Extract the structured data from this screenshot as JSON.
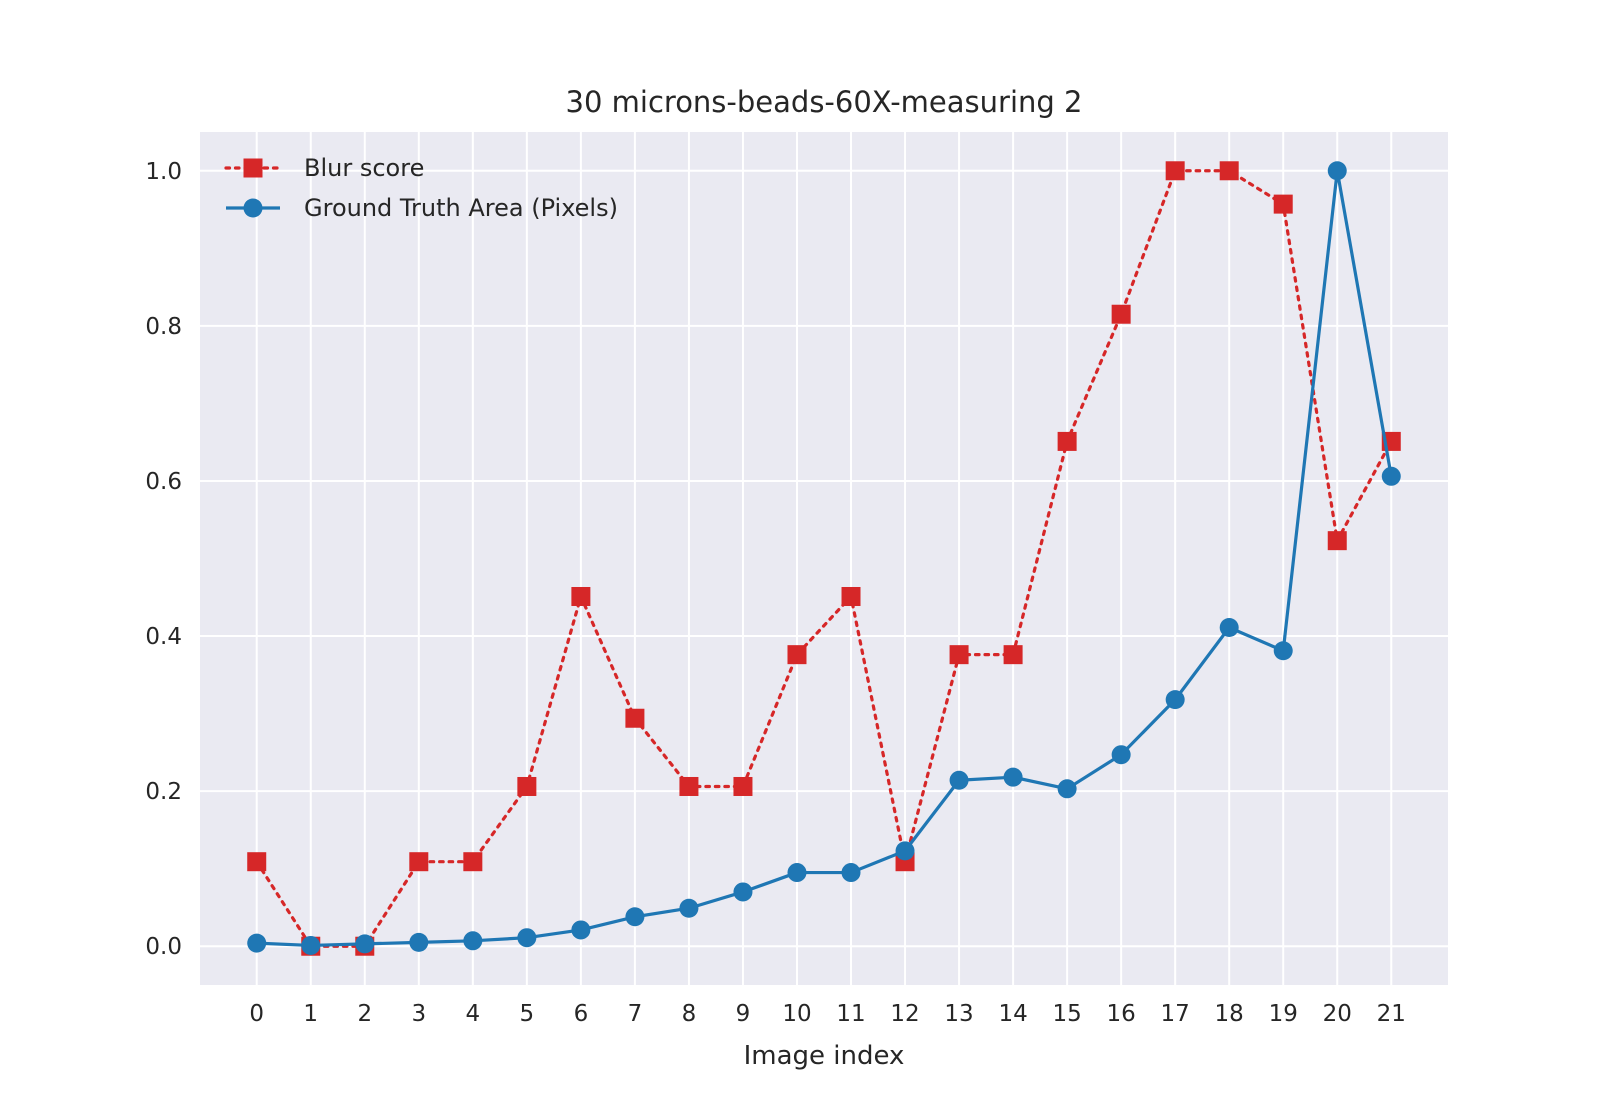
{
  "chart_data": {
    "type": "line",
    "title": "30 microns-beads-60X-measuring 2",
    "xlabel": "Image index",
    "ylabel": "",
    "x": [
      0,
      1,
      2,
      3,
      4,
      5,
      6,
      7,
      8,
      9,
      10,
      11,
      12,
      13,
      14,
      15,
      16,
      17,
      18,
      19,
      20,
      21
    ],
    "xticks": [
      "0",
      "1",
      "2",
      "3",
      "4",
      "5",
      "6",
      "7",
      "8",
      "9",
      "10",
      "11",
      "12",
      "13",
      "14",
      "15",
      "16",
      "17",
      "18",
      "19",
      "20",
      "21"
    ],
    "yticks": [
      "0.0",
      "0.2",
      "0.4",
      "0.6",
      "0.8",
      "1.0"
    ],
    "ytick_values": [
      0.0,
      0.2,
      0.4,
      0.6,
      0.8,
      1.0
    ],
    "xlim": [
      -1.05,
      22.05
    ],
    "ylim": [
      -0.05,
      1.05
    ],
    "grid": true,
    "legend_position": "top-left",
    "series": [
      {
        "name": "Blur score",
        "color": "#d62728",
        "line_style": "dotted",
        "marker": "square",
        "values": [
          0.109,
          0.0,
          0.0,
          0.109,
          0.109,
          0.206,
          0.451,
          0.294,
          0.206,
          0.206,
          0.376,
          0.451,
          0.109,
          0.376,
          0.376,
          0.651,
          0.815,
          1.0,
          1.0,
          0.957,
          0.523,
          0.651
        ]
      },
      {
        "name": "Ground Truth Area (Pixels)",
        "color": "#1f77b4",
        "line_style": "solid",
        "marker": "circle",
        "values": [
          0.004,
          0.001,
          0.003,
          0.005,
          0.007,
          0.011,
          0.021,
          0.038,
          0.049,
          0.07,
          0.095,
          0.095,
          0.123,
          0.214,
          0.218,
          0.203,
          0.247,
          0.318,
          0.411,
          0.381,
          1.0,
          0.606
        ]
      }
    ]
  }
}
